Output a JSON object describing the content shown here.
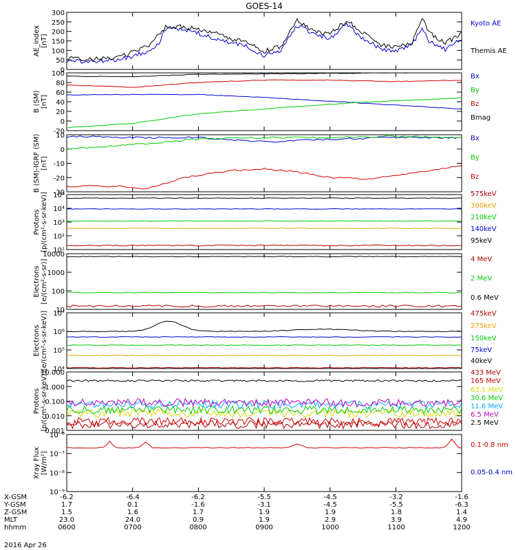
{
  "title": "GOES-14",
  "date": "2016 Apr 26",
  "colors": {
    "black": "#000000",
    "blue": "#0000d0",
    "green": "#00cc00",
    "red": "#cc0000",
    "orange": "#e8a000",
    "cyan": "#00aaff",
    "yellow": "#d8d800",
    "magenta": "#c000c0",
    "darkred": "#b00000"
  },
  "footer": {
    "rows": [
      {
        "label": "X-GSM",
        "values": [
          "-6.2",
          "-6.4",
          "-6.2",
          "-5.5",
          "-4.5",
          "-3.2",
          "-1.6"
        ]
      },
      {
        "label": "Y-GSM",
        "values": [
          "1.7",
          "0.1",
          "-1.6",
          "-3.1",
          "-4.5",
          "-5.5",
          "-6.3"
        ]
      },
      {
        "label": "Z-GSM",
        "values": [
          "1.5",
          "1.6",
          "1.7",
          "1.9",
          "1.9",
          "1.8",
          "1.4"
        ]
      },
      {
        "label": "MLT",
        "values": [
          "23.0",
          "24.0",
          "0.9",
          "1.9",
          "2.9",
          "3.9",
          "4.9"
        ]
      },
      {
        "label": "hhmm",
        "values": [
          "0600",
          "0700",
          "0800",
          "0900",
          "1000",
          "1100",
          "1200"
        ]
      }
    ]
  },
  "chart_data": [
    {
      "type": "line",
      "panel": "ae",
      "ylabel": [
        "AE_index",
        "[nT]"
      ],
      "ylim": [
        0,
        300
      ],
      "ticks": [
        "0",
        "50",
        "100",
        "150",
        "200",
        "250",
        "300"
      ],
      "x_hours": [
        6,
        12
      ],
      "series": [
        {
          "name": "Kyoto AE",
          "color": "blue",
          "x": [
            6.0,
            6.25,
            6.5,
            6.75,
            7.0,
            7.25,
            7.4,
            7.5,
            7.75,
            8.0,
            8.25,
            8.5,
            8.75,
            9.0,
            9.25,
            9.5,
            9.75,
            10.0,
            10.25,
            10.5,
            10.75,
            11.0,
            11.25,
            11.4,
            11.5,
            11.75,
            12.0
          ],
          "y": [
            45,
            40,
            45,
            50,
            70,
            100,
            140,
            210,
            215,
            190,
            160,
            140,
            120,
            70,
            100,
            230,
            190,
            160,
            235,
            165,
            110,
            95,
            130,
            215,
            150,
            105,
            160
          ]
        },
        {
          "name": "Themis AE",
          "color": "black",
          "x": [
            6.0,
            6.25,
            6.5,
            6.75,
            7.0,
            7.25,
            7.4,
            7.5,
            7.75,
            8.0,
            8.25,
            8.5,
            8.75,
            9.0,
            9.25,
            9.5,
            9.75,
            10.0,
            10.25,
            10.5,
            10.75,
            11.0,
            11.25,
            11.4,
            11.5,
            11.75,
            12.0
          ],
          "y": [
            60,
            50,
            55,
            60,
            90,
            130,
            190,
            220,
            225,
            210,
            190,
            160,
            140,
            95,
            120,
            255,
            200,
            185,
            255,
            195,
            130,
            115,
            140,
            275,
            195,
            140,
            185
          ]
        }
      ]
    },
    {
      "type": "line",
      "panel": "bsm",
      "ylabel": [
        "B (SM)",
        "[nT]"
      ],
      "ylim": [
        -20,
        100
      ],
      "ticks": [
        "-20",
        "0",
        "20",
        "40",
        "60",
        "80",
        "100"
      ],
      "series": [
        {
          "name": "Bx",
          "color": "blue",
          "x": [
            6,
            7,
            8,
            9,
            10,
            11,
            12
          ],
          "y": [
            54,
            55,
            55,
            49,
            41,
            33,
            25
          ]
        },
        {
          "name": "By",
          "color": "green",
          "x": [
            6,
            7,
            8,
            9,
            10,
            11,
            12
          ],
          "y": [
            -14,
            -5,
            15,
            25,
            35,
            42,
            48
          ]
        },
        {
          "name": "Bz",
          "color": "red",
          "x": [
            6,
            7,
            8,
            9,
            10,
            11,
            12
          ],
          "y": [
            75,
            70,
            80,
            85,
            85,
            82,
            85
          ]
        },
        {
          "name": "Bmag",
          "color": "black",
          "x": [
            6,
            7,
            8,
            9,
            10,
            11,
            12
          ],
          "y": [
            93,
            92,
            97,
            98,
            99,
            100,
            102
          ]
        }
      ]
    },
    {
      "type": "line",
      "panel": "bigrf",
      "ylabel": [
        "B (SM)-IGRF (SM)",
        "[nT]"
      ],
      "ylim": [
        -30,
        10
      ],
      "ticks": [
        "-30",
        "-20",
        "-10",
        "0",
        "10"
      ],
      "series": [
        {
          "name": "Bx",
          "color": "blue",
          "x": [
            6,
            7,
            8,
            9,
            10,
            11,
            12
          ],
          "y": [
            9,
            8,
            8,
            5,
            7,
            8,
            8
          ]
        },
        {
          "name": "By",
          "color": "green",
          "x": [
            6,
            7,
            8,
            9,
            10,
            11,
            12
          ],
          "y": [
            0,
            3,
            7,
            8,
            8,
            9,
            8
          ]
        },
        {
          "name": "Bz",
          "color": "red",
          "x": [
            6,
            6.75,
            7.2,
            7.8,
            8.5,
            9,
            9.5,
            10,
            10.5,
            11,
            11.5,
            12
          ],
          "y": [
            -26,
            -26,
            -28,
            -20,
            -15,
            -14,
            -16,
            -20,
            -21,
            -19,
            -15,
            -12
          ]
        }
      ]
    },
    {
      "type": "line",
      "panel": "protons_low",
      "log": true,
      "ylabel": [
        "Protons",
        "[p/(cm²-s-sr-keV)]"
      ],
      "ylim_exp": [
        1,
        5
      ],
      "ticks": [
        "10¹",
        "10²",
        "10³",
        "10⁴",
        "10⁵"
      ],
      "series": [
        {
          "name": "575keV",
          "color": "darkred",
          "y": 20
        },
        {
          "name": "300keV",
          "color": "orange",
          "y": 350
        },
        {
          "name": "210keV",
          "color": "green",
          "y": 1200
        },
        {
          "name": "140keV",
          "color": "blue",
          "y": 9000
        },
        {
          "name": "95keV",
          "color": "black",
          "y": 55000
        }
      ]
    },
    {
      "type": "line",
      "panel": "electrons_mev",
      "log": true,
      "ylabel": [
        "Electrons",
        "[e/(cm²-s-sr)]"
      ],
      "ylim_exp": [
        1,
        4
      ],
      "ticks": [
        "10",
        "100",
        "1000",
        "10000"
      ],
      "series": [
        {
          "name": "4 MeV",
          "color": "darkred",
          "y": 15
        },
        {
          "name": "2 MeV",
          "color": "green",
          "y": 80
        },
        {
          "name": "0.6 MeV",
          "color": "black",
          "y": 7000
        }
      ]
    },
    {
      "type": "line",
      "panel": "electrons_kev",
      "log": true,
      "ylabel": [
        "Electrons",
        "[e/(cm²-s-sr-keV)]"
      ],
      "ylim_exp": [
        4,
        7
      ],
      "ticks": [
        "10⁴",
        "10⁵",
        "10⁶",
        "10⁷"
      ],
      "series": [
        {
          "name": "475keV",
          "color": "darkred",
          "y": 11000
        },
        {
          "name": "275keV",
          "color": "orange",
          "y": 50000
        },
        {
          "name": "150keV",
          "color": "green",
          "y": 180000
        },
        {
          "name": "75keV",
          "color": "blue",
          "y": 500000
        },
        {
          "name": "40keV",
          "color": "black",
          "y": 1000000
        }
      ]
    },
    {
      "type": "line",
      "panel": "protons_high",
      "log": true,
      "ylabel": [
        "Protons",
        "[p/(cm²-s-sr-keV)]"
      ],
      "ylim_exp": [
        -3,
        1
      ],
      "ticks": [
        "0.001",
        "0.010",
        "0.100",
        "1.000",
        "10.000"
      ],
      "series": [
        {
          "name": "433 MeV",
          "color": "darkred",
          "y": 0.0025
        },
        {
          "name": "165 MeV",
          "color": "red",
          "y": 0.004
        },
        {
          "name": "63.1 MeV",
          "color": "yellow",
          "y": 0.015
        },
        {
          "name": "30.6 MeV",
          "color": "green",
          "y": 0.025
        },
        {
          "name": "11.6 MeV",
          "color": "cyan",
          "y": 0.06
        },
        {
          "name": "6.5 MeV",
          "color": "magenta",
          "y": 0.08
        },
        {
          "name": "2.5 MeV",
          "color": "black",
          "y": 2.5
        }
      ]
    },
    {
      "type": "line",
      "panel": "xray",
      "log": true,
      "ylabel": [
        "Xray Flux",
        "[W/m²]"
      ],
      "ylim_exp": [
        -9,
        -6
      ],
      "ticks": [
        "10⁻⁹",
        "10⁻⁸",
        "10⁻⁷",
        "10⁻⁶"
      ],
      "series": [
        {
          "name": "0.1-0.8 nm",
          "color": "red",
          "y": 2e-07
        },
        {
          "name": "0.05-0.4 nm",
          "color": "blue",
          "y": null
        }
      ]
    }
  ]
}
